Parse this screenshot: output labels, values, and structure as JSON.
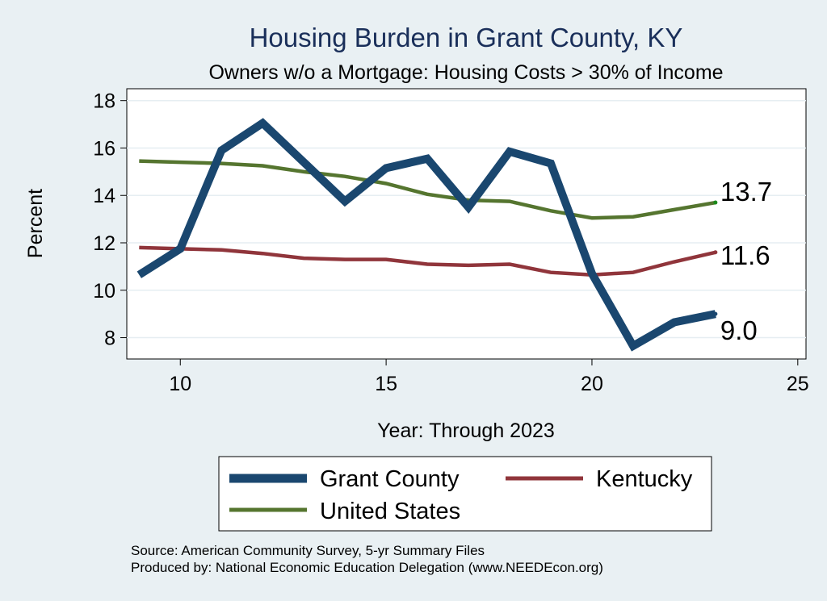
{
  "chart_data": {
    "type": "line",
    "title": "Housing Burden in Grant County, KY",
    "subtitle": "Owners w/o a Mortgage: Housing Costs > 30% of Income",
    "xlabel": "Year: Through 2023",
    "ylabel": "Percent",
    "xlim": [
      8.7,
      25.2
    ],
    "ylim": [
      7.1,
      18.5
    ],
    "xticks": [
      "10",
      "15",
      "20",
      "25"
    ],
    "yticks": [
      "8",
      "10",
      "12",
      "14",
      "16",
      "18"
    ],
    "grid": "horizontal",
    "x": [
      9,
      10,
      11,
      12,
      13,
      14,
      15,
      16,
      17,
      18,
      19,
      20,
      21,
      22,
      23
    ],
    "series": [
      {
        "name": "Grant County",
        "color": "#1a476f",
        "values": [
          10.65,
          11.75,
          15.9,
          17.05,
          15.4,
          13.75,
          15.15,
          15.55,
          13.5,
          15.85,
          15.35,
          10.7,
          7.65,
          8.65,
          9.0
        ],
        "end_label": "9.0"
      },
      {
        "name": "Kentucky",
        "color": "#90353b",
        "values": [
          11.8,
          11.75,
          11.7,
          11.55,
          11.35,
          11.3,
          11.3,
          11.1,
          11.05,
          11.1,
          10.75,
          10.65,
          10.75,
          11.2,
          11.6
        ],
        "end_label": "11.6"
      },
      {
        "name": "United States",
        "color": "#55752f",
        "values": [
          15.45,
          15.4,
          15.35,
          15.25,
          15.0,
          14.8,
          14.5,
          14.05,
          13.8,
          13.75,
          13.35,
          13.05,
          13.1,
          13.4,
          13.7
        ],
        "end_label": "13.7"
      }
    ],
    "legend": {
      "position": "bottom",
      "entries": [
        "Grant County",
        "Kentucky",
        "United States"
      ]
    }
  },
  "footer": {
    "source": "Source: American Community Survey, 5-yr Summary Files",
    "produced": "Produced by: National Economic Education Delegation (www.NEEDEcon.org)"
  }
}
